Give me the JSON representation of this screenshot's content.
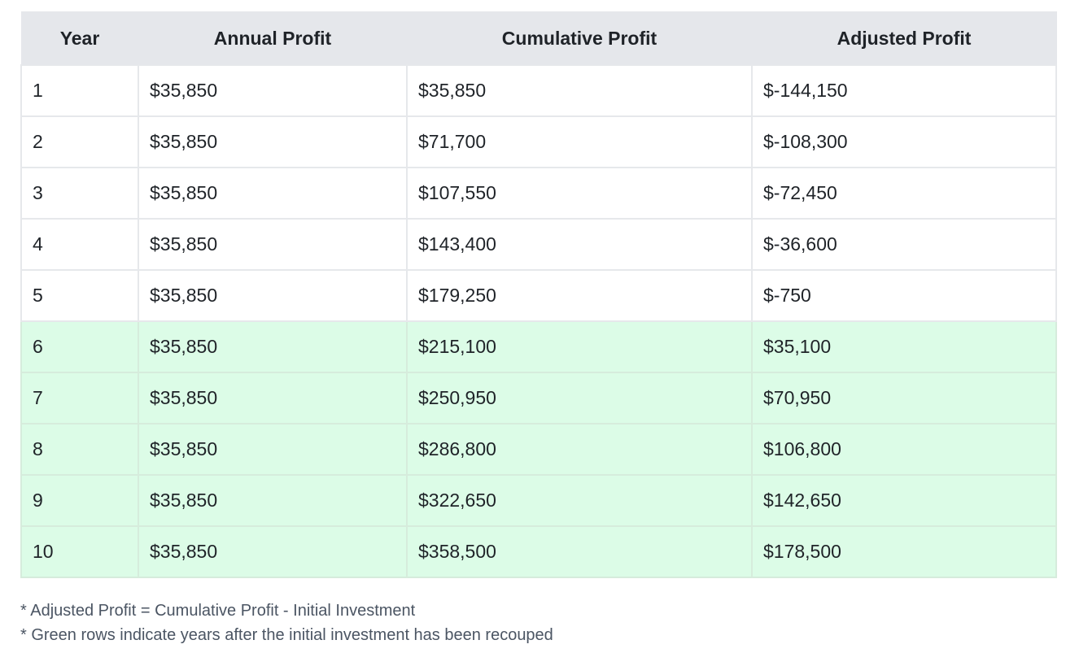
{
  "table": {
    "headers": [
      "Year",
      "Annual Profit",
      "Cumulative Profit",
      "Adjusted Profit"
    ],
    "rows": [
      {
        "year": "1",
        "annual": "$35,850",
        "cumulative": "$35,850",
        "adjusted": "$-144,150",
        "recouped": false
      },
      {
        "year": "2",
        "annual": "$35,850",
        "cumulative": "$71,700",
        "adjusted": "$-108,300",
        "recouped": false
      },
      {
        "year": "3",
        "annual": "$35,850",
        "cumulative": "$107,550",
        "adjusted": "$-72,450",
        "recouped": false
      },
      {
        "year": "4",
        "annual": "$35,850",
        "cumulative": "$143,400",
        "adjusted": "$-36,600",
        "recouped": false
      },
      {
        "year": "5",
        "annual": "$35,850",
        "cumulative": "$179,250",
        "adjusted": "$-750",
        "recouped": false
      },
      {
        "year": "6",
        "annual": "$35,850",
        "cumulative": "$215,100",
        "adjusted": "$35,100",
        "recouped": true
      },
      {
        "year": "7",
        "annual": "$35,850",
        "cumulative": "$250,950",
        "adjusted": "$70,950",
        "recouped": true
      },
      {
        "year": "8",
        "annual": "$35,850",
        "cumulative": "$286,800",
        "adjusted": "$106,800",
        "recouped": true
      },
      {
        "year": "9",
        "annual": "$35,850",
        "cumulative": "$322,650",
        "adjusted": "$142,650",
        "recouped": true
      },
      {
        "year": "10",
        "annual": "$35,850",
        "cumulative": "$358,500",
        "adjusted": "$178,500",
        "recouped": true
      }
    ]
  },
  "notes": {
    "adjusted_formula": "* Adjusted Profit = Cumulative Profit - Initial Investment",
    "green_rows": "* Green rows indicate years after the initial investment has been recouped"
  },
  "colors": {
    "header_bg": "#e5e7eb",
    "recouped_row_bg": "#dcfce7",
    "pending_row_bg": "#ffffff"
  }
}
